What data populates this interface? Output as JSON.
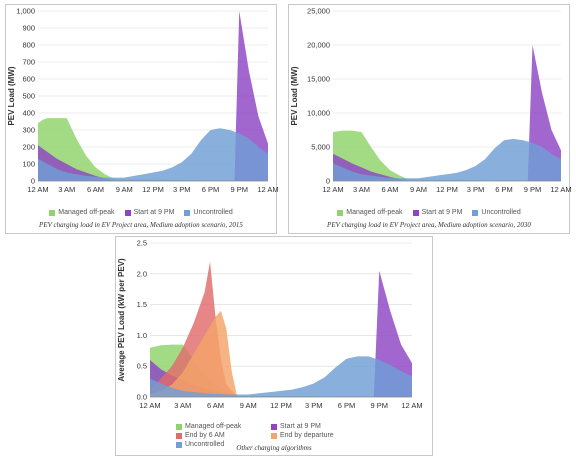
{
  "chart_data": [
    {
      "type": "area",
      "ylabel": "PEV Load (MW)",
      "yticks": [
        "0",
        "100",
        "200",
        "300",
        "400",
        "500",
        "600",
        "700",
        "800",
        "900",
        "1,000"
      ],
      "ymax": 1000,
      "xticks": [
        "12 AM",
        "3 AM",
        "6 AM",
        "9 AM",
        "12 PM",
        "3 PM",
        "6 PM",
        "9 PM",
        "12 AM"
      ],
      "caption": "PEV charging load in EV Project area, Medium adoption scenario, 2015",
      "series": [
        {
          "name": "Managed off-peak",
          "color": "#8fd36a",
          "x": [
            0,
            0.5,
            1,
            2,
            2.5,
            3,
            4,
            5,
            6,
            7,
            8,
            24
          ],
          "values": [
            340,
            360,
            370,
            370,
            370,
            370,
            250,
            150,
            80,
            40,
            10,
            0
          ]
        },
        {
          "name": "Start at 9 PM",
          "color": "#8e44c4",
          "x": [
            0,
            1,
            2,
            3,
            4,
            5,
            6,
            7,
            8,
            20.5,
            21,
            22,
            23,
            24
          ],
          "values": [
            210,
            170,
            130,
            100,
            70,
            50,
            30,
            15,
            0,
            0,
            1000,
            650,
            380,
            220
          ]
        },
        {
          "name": "Uncontrolled",
          "color": "#6f9fd6",
          "x": [
            0,
            1,
            2,
            3,
            4,
            5,
            6,
            7,
            8,
            9,
            10,
            11,
            12,
            13,
            14,
            15,
            16,
            17,
            18,
            19,
            20,
            21,
            22,
            23,
            24
          ],
          "values": [
            130,
            100,
            70,
            50,
            40,
            30,
            25,
            20,
            20,
            20,
            30,
            40,
            50,
            60,
            80,
            110,
            160,
            240,
            300,
            310,
            300,
            280,
            250,
            200,
            160
          ]
        }
      ]
    },
    {
      "type": "area",
      "ylabel": "PEV Load (MW)",
      "yticks": [
        "0",
        "5,000",
        "10,000",
        "15,000",
        "20,000",
        "25,000"
      ],
      "ymax": 25000,
      "xticks": [
        "12 AM",
        "3 AM",
        "6 AM",
        "9 AM",
        "12 PM",
        "3 PM",
        "6 PM",
        "9 PM",
        "12 AM"
      ],
      "caption": "PEV charging load in EV Project area, Medium adoption scenario, 2030",
      "series": [
        {
          "name": "Managed off-peak",
          "color": "#8fd36a",
          "x": [
            0,
            0.5,
            1,
            2,
            2.5,
            3,
            4,
            5,
            6,
            7,
            8,
            24
          ],
          "values": [
            7200,
            7300,
            7400,
            7400,
            7300,
            7200,
            5000,
            3000,
            1600,
            800,
            200,
            0
          ]
        },
        {
          "name": "Start at 9 PM",
          "color": "#8e44c4",
          "x": [
            0,
            1,
            2,
            3,
            4,
            5,
            6,
            7,
            8,
            20.5,
            21,
            22,
            23,
            24
          ],
          "values": [
            4000,
            3300,
            2600,
            2000,
            1400,
            1000,
            600,
            300,
            0,
            0,
            20000,
            13000,
            7500,
            4500
          ]
        },
        {
          "name": "Uncontrolled",
          "color": "#6f9fd6",
          "x": [
            0,
            1,
            2,
            3,
            4,
            5,
            6,
            7,
            8,
            9,
            10,
            11,
            12,
            13,
            14,
            15,
            16,
            17,
            18,
            19,
            20,
            21,
            22,
            23,
            24
          ],
          "values": [
            2600,
            2000,
            1400,
            1000,
            800,
            600,
            500,
            400,
            400,
            400,
            600,
            800,
            1000,
            1200,
            1600,
            2200,
            3200,
            4800,
            6000,
            6200,
            6000,
            5600,
            5000,
            4000,
            3200
          ]
        }
      ]
    },
    {
      "type": "area",
      "ylabel": "Average PEV Load (kW per PEV)",
      "yticks": [
        "0.0",
        "0.5",
        "1.0",
        "1.5",
        "2.0",
        "2.5"
      ],
      "ymax": 2.5,
      "xticks": [
        "12 AM",
        "3 AM",
        "6 AM",
        "9 AM",
        "12 PM",
        "3 PM",
        "6 PM",
        "9 PM",
        "12 AM"
      ],
      "caption": "Other charging algorithms",
      "series": [
        {
          "name": "Managed off-peak",
          "color": "#8fd36a",
          "x": [
            0,
            1,
            2,
            3,
            4,
            5,
            6,
            7,
            8,
            24
          ],
          "values": [
            0.8,
            0.84,
            0.85,
            0.85,
            0.6,
            0.35,
            0.2,
            0.1,
            0.02,
            0
          ]
        },
        {
          "name": "Start at 9 PM",
          "color": "#8e44c4",
          "x": [
            0,
            1,
            2,
            3,
            4,
            5,
            6,
            7,
            8,
            20.5,
            21,
            22,
            23,
            24
          ],
          "values": [
            0.6,
            0.45,
            0.35,
            0.28,
            0.2,
            0.15,
            0.1,
            0.05,
            0,
            0,
            2.05,
            1.4,
            0.85,
            0.55
          ]
        },
        {
          "name": "End by 6 AM",
          "color": "#e06b6b",
          "x": [
            0,
            1,
            2,
            3,
            4,
            5,
            5.5,
            6,
            6.5,
            7,
            8,
            24
          ],
          "values": [
            0.1,
            0.3,
            0.5,
            0.8,
            1.2,
            1.7,
            2.2,
            1.3,
            0.6,
            0.2,
            0,
            0
          ]
        },
        {
          "name": "End by departure",
          "color": "#f4a46a",
          "x": [
            0,
            1,
            2,
            3,
            4,
            5,
            6,
            6.5,
            7,
            7.5,
            8,
            24
          ],
          "values": [
            0.05,
            0.1,
            0.2,
            0.4,
            0.7,
            1.0,
            1.3,
            1.4,
            1.1,
            0.4,
            0,
            0
          ]
        },
        {
          "name": "Uncontrolled",
          "color": "#6f9fd6",
          "x": [
            0,
            1,
            2,
            3,
            4,
            5,
            6,
            7,
            8,
            9,
            10,
            11,
            12,
            13,
            14,
            15,
            16,
            17,
            18,
            19,
            20,
            21,
            22,
            23,
            24
          ],
          "values": [
            0.3,
            0.22,
            0.15,
            0.1,
            0.08,
            0.06,
            0.05,
            0.04,
            0.04,
            0.04,
            0.06,
            0.08,
            0.1,
            0.12,
            0.16,
            0.22,
            0.32,
            0.48,
            0.62,
            0.66,
            0.66,
            0.6,
            0.52,
            0.42,
            0.33
          ]
        }
      ]
    }
  ]
}
